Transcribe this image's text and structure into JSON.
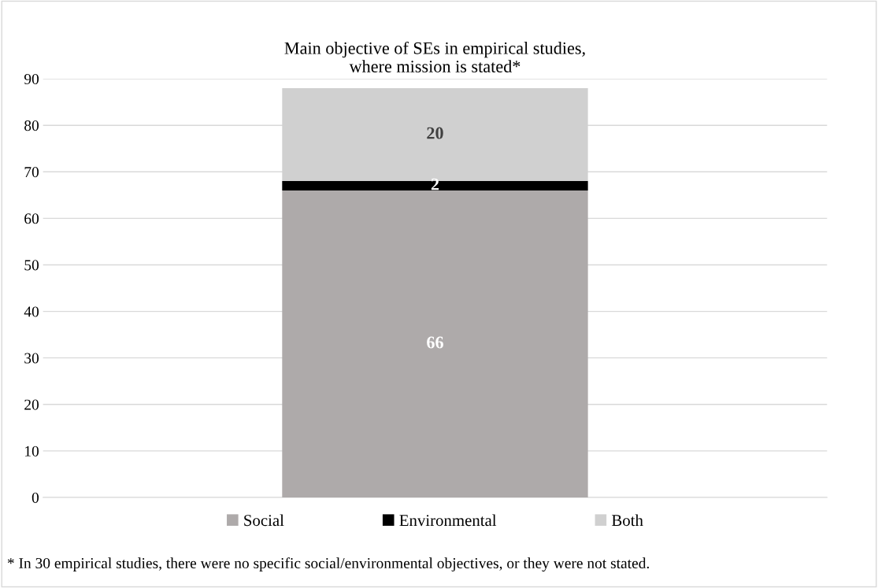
{
  "chart_data": {
    "type": "bar",
    "title": "Main objective of SEs in empirical studies,\nwhere mission is stated*",
    "categories": [
      null
    ],
    "stacked": true,
    "data_labels": true,
    "series": [
      {
        "name": "Social",
        "color": "#aeaaaa",
        "values": [
          66
        ]
      },
      {
        "name": "Environmental",
        "color": "#000000",
        "values": [
          2
        ]
      },
      {
        "name": "Both",
        "color": "#d0d0d0",
        "values": [
          20
        ]
      }
    ],
    "ylim": [
      0,
      90
    ],
    "yticks": [
      0,
      10,
      20,
      30,
      40,
      50,
      60,
      70,
      80,
      90
    ],
    "grid": "y",
    "legend": "bottom",
    "annotations": [
      "* In 30 empirical studies, there were no specific social/environmental objectives, or they were not stated."
    ]
  }
}
